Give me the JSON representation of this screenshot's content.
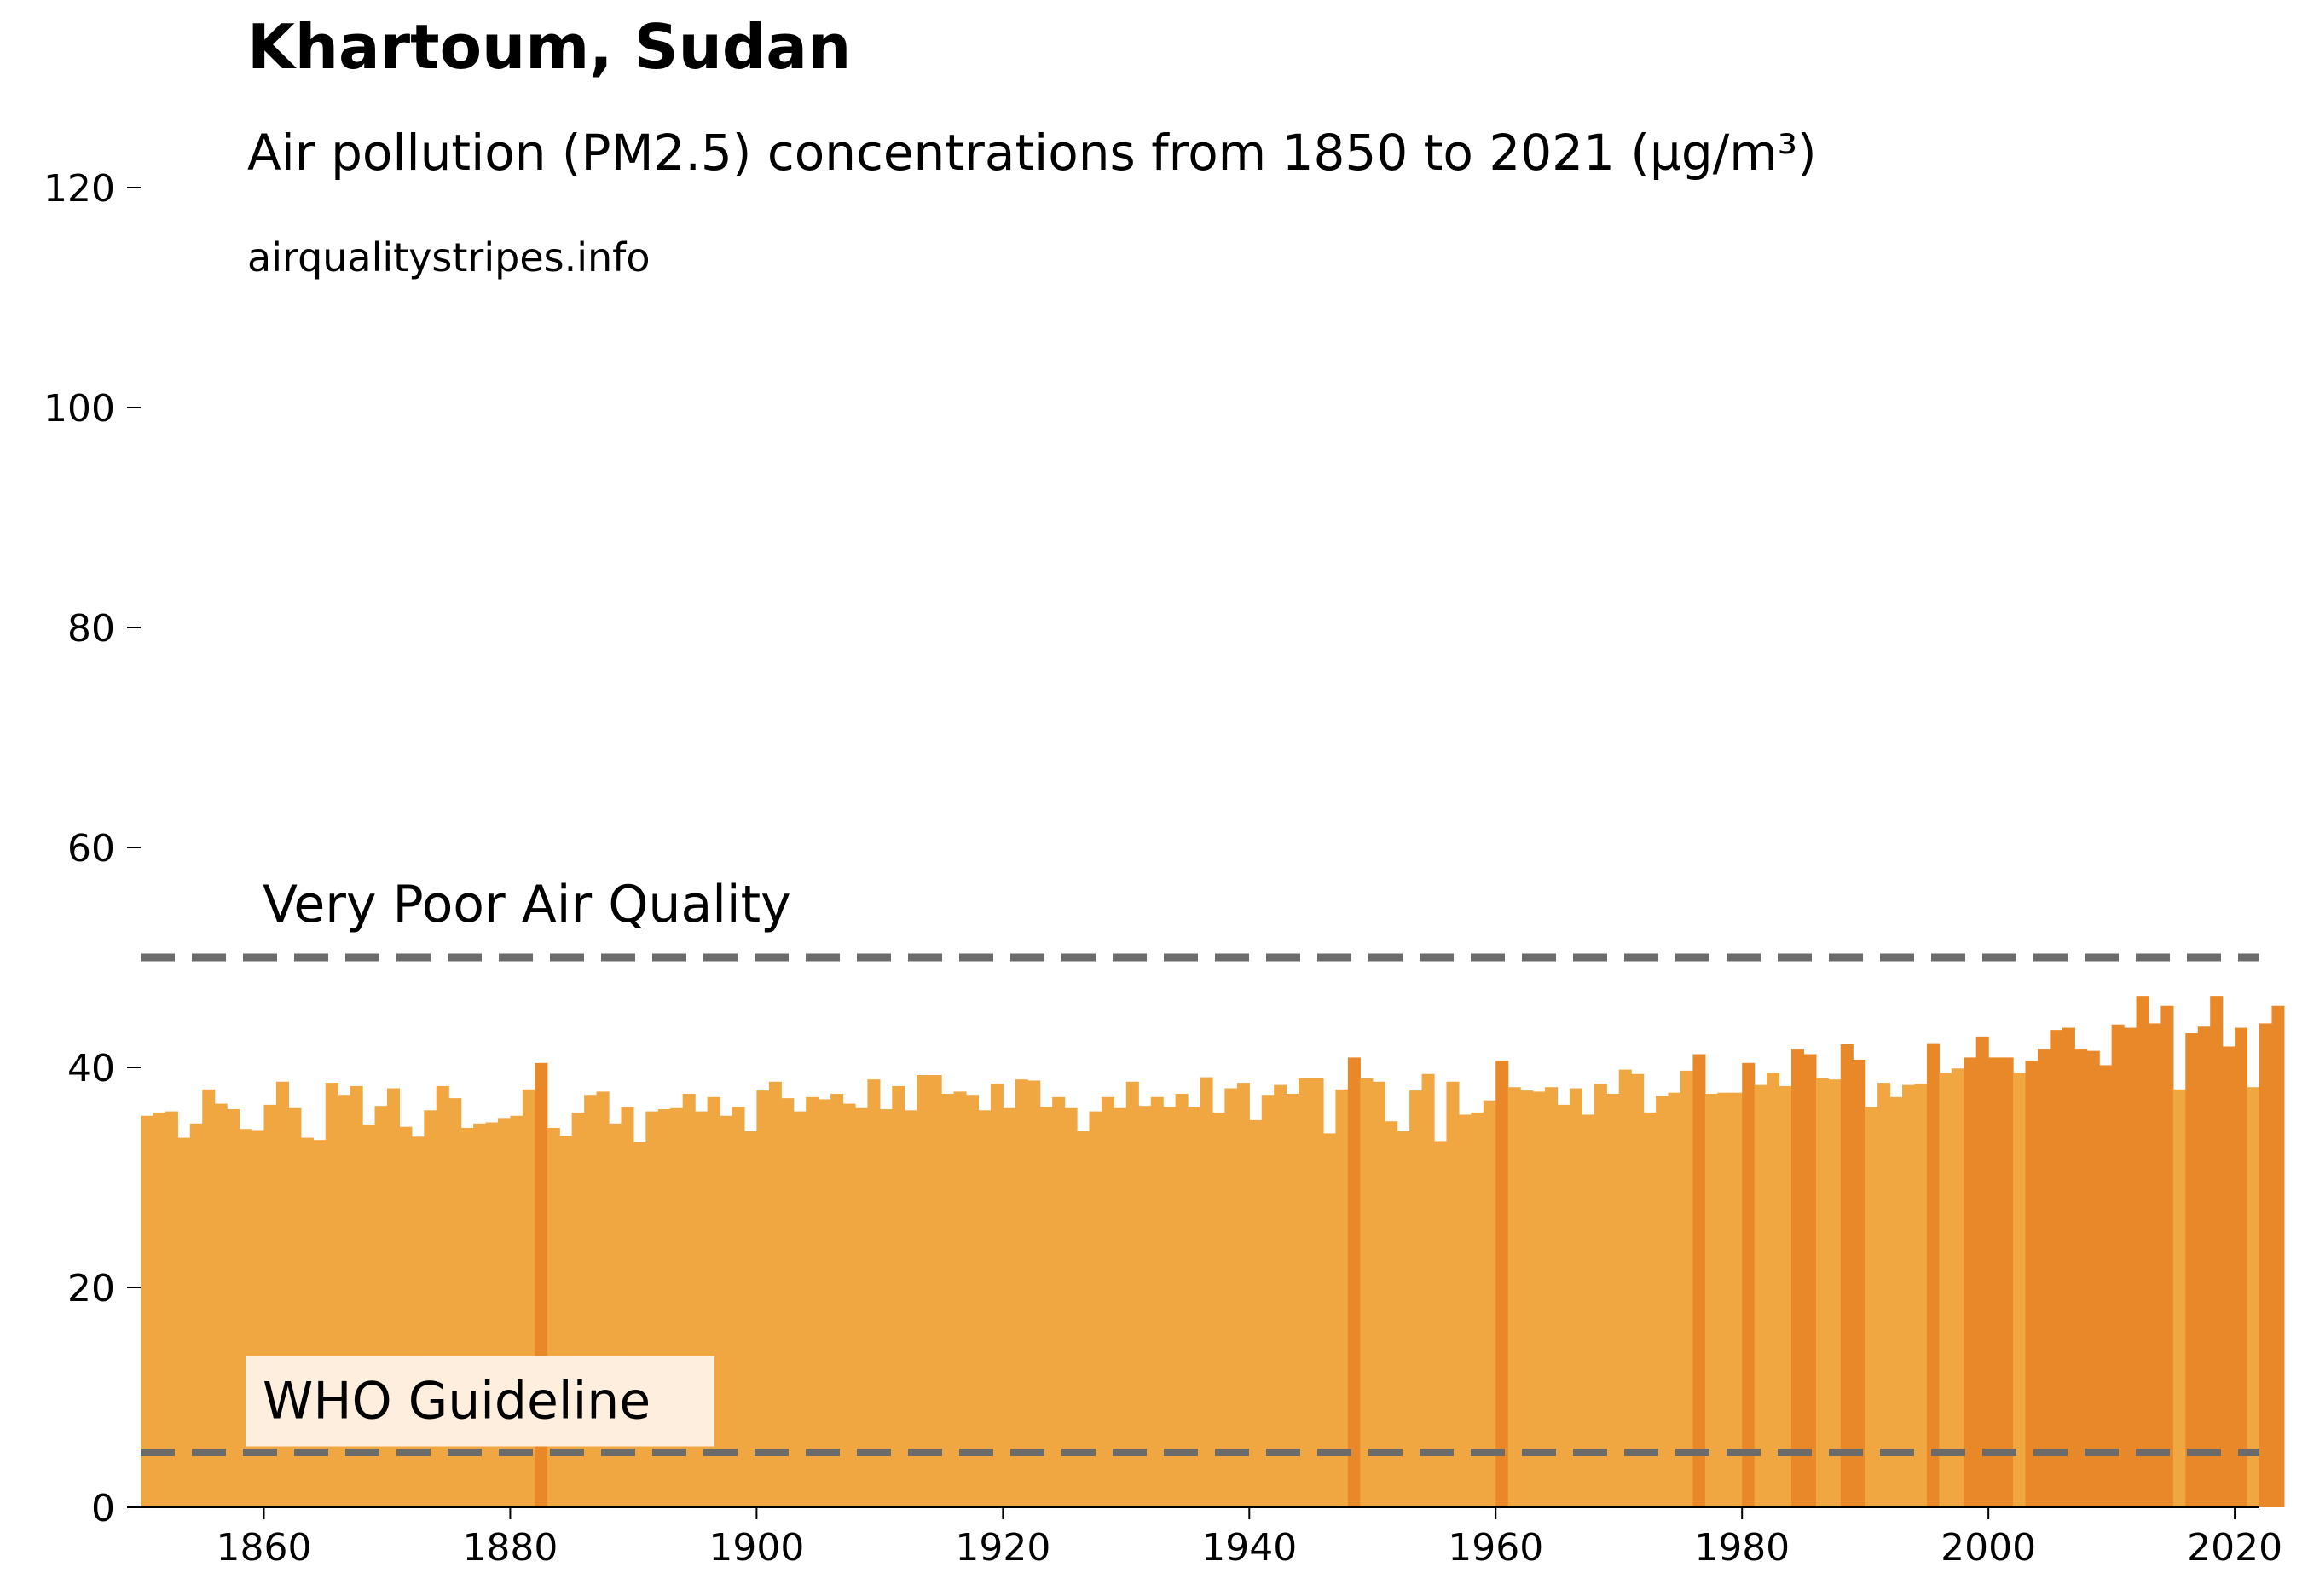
{
  "chart_data": {
    "type": "bar",
    "title": "Khartoum, Sudan",
    "subtitle": "Air pollution (PM2.5) concentrations from 1850 to 2021 (µg/m³)",
    "source": "airqualitystripes.info",
    "xlabel": "",
    "ylabel": "",
    "xlim": [
      1850,
      2022
    ],
    "ylim": [
      0,
      125
    ],
    "x_ticks": [
      1860,
      1880,
      1900,
      1920,
      1940,
      1960,
      1980,
      2000,
      2020
    ],
    "y_ticks": [
      0,
      20,
      40,
      60,
      80,
      100,
      120
    ],
    "grid": false,
    "legend": "none",
    "colors": {
      "bar_normal": "#f0a742",
      "bar_high": "#e88828",
      "bar_high_threshold": 40,
      "reference_line": "#6b6b6b",
      "who_label_background": "#fdeedd"
    },
    "reference_lines": [
      {
        "label": "Very Poor Air Quality",
        "value": 50
      },
      {
        "label": "WHO Guideline",
        "value": 5
      }
    ],
    "x_start": 1850,
    "values": [
      35.6,
      35.9,
      36.0,
      33.6,
      34.9,
      38.0,
      36.7,
      36.2,
      34.4,
      34.3,
      36.6,
      38.7,
      36.3,
      33.6,
      33.4,
      38.6,
      37.5,
      38.3,
      34.8,
      36.5,
      38.1,
      34.6,
      33.7,
      36.1,
      38.3,
      37.2,
      34.5,
      34.9,
      35.0,
      35.4,
      35.6,
      38.0,
      40.4,
      34.5,
      33.8,
      35.9,
      37.5,
      37.8,
      34.9,
      36.4,
      33.2,
      36.0,
      36.2,
      36.3,
      37.6,
      36.0,
      37.3,
      35.6,
      36.4,
      34.2,
      37.9,
      38.7,
      37.2,
      36.0,
      37.3,
      37.1,
      37.6,
      36.7,
      36.3,
      38.9,
      36.2,
      38.3,
      36.1,
      39.3,
      39.3,
      37.6,
      37.8,
      37.5,
      36.1,
      38.5,
      36.3,
      38.9,
      38.8,
      36.4,
      37.3,
      36.3,
      34.2,
      36.0,
      37.3,
      36.3,
      38.7,
      36.5,
      37.3,
      36.4,
      37.6,
      36.4,
      39.1,
      35.9,
      38.1,
      38.6,
      35.2,
      37.5,
      38.4,
      37.6,
      39.0,
      39.0,
      34.0,
      38.0,
      40.9,
      39.0,
      38.7,
      35.1,
      34.2,
      37.9,
      39.4,
      33.3,
      38.7,
      35.7,
      35.9,
      37.0,
      40.6,
      38.2,
      37.9,
      37.8,
      38.2,
      36.6,
      38.1,
      35.7,
      38.5,
      37.6,
      39.8,
      39.4,
      35.9,
      37.4,
      37.7,
      39.7,
      41.2,
      37.6,
      37.7,
      37.7,
      40.4,
      38.4,
      39.5,
      38.3,
      41.7,
      41.2,
      39.0,
      38.9,
      42.1,
      40.7,
      36.4,
      38.6,
      37.3,
      38.4,
      38.5,
      42.2,
      39.5,
      39.9,
      40.9,
      42.8,
      40.9,
      40.9,
      39.5,
      40.6,
      41.7,
      43.4,
      43.6,
      41.7,
      41.5,
      40.2,
      43.9,
      43.6,
      46.5,
      44.0,
      45.6,
      38.0,
      43.1,
      43.7,
      46.5,
      41.9,
      43.6,
      38.2,
      44.0,
      45.6
    ]
  }
}
